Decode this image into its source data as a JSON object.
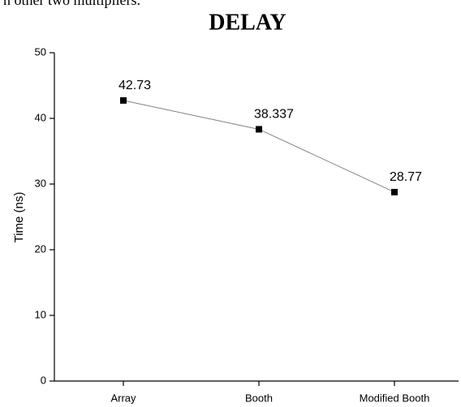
{
  "text_fragment": "n other two multipliers.",
  "chart_data": {
    "type": "line",
    "title": "DELAY",
    "y_label": "Time (ns)",
    "categories": [
      "Array",
      "Booth",
      "Modified Booth"
    ],
    "values": [
      42.73,
      38.337,
      28.77
    ],
    "color": "#000000",
    "line_color": "#808080",
    "grid": false,
    "ylim": [
      0,
      50
    ],
    "yticks": [
      0,
      10,
      20,
      30,
      40,
      50
    ]
  }
}
